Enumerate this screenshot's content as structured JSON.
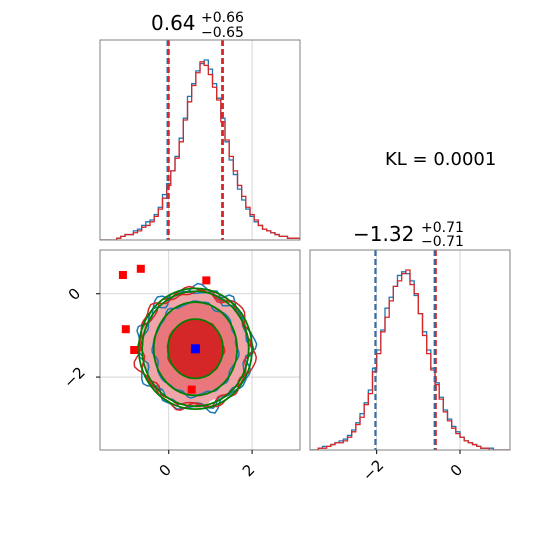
{
  "chart_data": {
    "type": "corner",
    "annotation": "KL = 0.0001",
    "colors": {
      "blue": "#1f77b4",
      "red": "#d62728",
      "green": "#008000",
      "marker_blue": "#0000ff",
      "marker_red": "#ff0000",
      "grid": "#cccccc"
    },
    "panels": [
      {
        "id": "p1",
        "title_main": "0.64",
        "title_sup": "+0.66",
        "title_sub": "−0.65",
        "xlim": [
          -1.65,
          3.15
        ],
        "ylim": [
          0,
          1.1
        ],
        "xgrid": [
          0,
          2
        ],
        "vlines": [
          {
            "x": -0.03,
            "color": "blue"
          },
          {
            "x": 0.0,
            "color": "red"
          },
          {
            "x": 1.28,
            "color": "blue"
          },
          {
            "x": 1.3,
            "color": "red"
          }
        ],
        "bin_start": -1.65,
        "bin_width": 0.1,
        "series": [
          {
            "name": "",
            "color": "blue",
            "values": [
              0,
              0,
              0,
              0,
              0.01,
              0.02,
              0.03,
              0.03,
              0.05,
              0.06,
              0.08,
              0.1,
              0.11,
              0.14,
              0.18,
              0.25,
              0.31,
              0.38,
              0.46,
              0.56,
              0.67,
              0.79,
              0.86,
              0.93,
              0.97,
              0.99,
              0.94,
              0.86,
              0.78,
              0.67,
              0.54,
              0.44,
              0.36,
              0.28,
              0.22,
              0.17,
              0.13,
              0.1,
              0.08,
              0.06,
              0.05,
              0.04,
              0.03,
              0.02,
              0.02,
              0.01,
              0.01,
              0.01
            ]
          },
          {
            "name": "",
            "color": "red",
            "values": [
              0,
              0,
              0,
              0,
              0.01,
              0.02,
              0.03,
              0.03,
              0.04,
              0.05,
              0.07,
              0.08,
              0.1,
              0.13,
              0.17,
              0.23,
              0.3,
              0.38,
              0.45,
              0.54,
              0.66,
              0.76,
              0.85,
              0.92,
              0.98,
              0.96,
              0.91,
              0.84,
              0.77,
              0.65,
              0.55,
              0.46,
              0.38,
              0.3,
              0.24,
              0.18,
              0.14,
              0.11,
              0.08,
              0.06,
              0.05,
              0.04,
              0.03,
              0.02,
              0.02,
              0.01,
              0.01,
              0.01
            ]
          }
        ]
      },
      {
        "id": "p2",
        "xlim": [
          -1.65,
          3.15
        ],
        "ylim": [
          -3.75,
          1.05
        ],
        "xgrid": [
          0,
          2
        ],
        "ygrid": [
          0,
          -2
        ],
        "xticks": [
          "0",
          "2"
        ],
        "yticks": [
          "0",
          "−2"
        ],
        "center": [
          0.64,
          -1.32
        ],
        "gaussian_levels": [
          {
            "rx": 0.66,
            "ry": 0.71
          },
          {
            "rx": 1.0,
            "ry": 1.12
          },
          {
            "rx": 1.28,
            "ry": 1.38
          },
          {
            "rx": 1.36,
            "ry": 1.45
          }
        ],
        "blue_marker": [
          0.64,
          -1.32
        ],
        "red_markers": [
          [
            -1.1,
            0.45
          ],
          [
            -0.67,
            0.6
          ],
          [
            -1.03,
            -0.85
          ],
          [
            -0.83,
            -1.35
          ],
          [
            0.55,
            -2.3
          ],
          [
            0.9,
            0.32
          ]
        ]
      },
      {
        "id": "p3",
        "title_main": "−1.32",
        "title_sup": "+0.71",
        "title_sub": "−0.71",
        "xlim": [
          -3.6,
          1.2
        ],
        "ylim": [
          0,
          1.1
        ],
        "xgrid": [
          -2,
          0
        ],
        "xticks": [
          "−2",
          "0"
        ],
        "vlines": [
          {
            "x": -2.03,
            "color": "red"
          },
          {
            "x": -2.03,
            "color": "blue"
          },
          {
            "x": -0.61,
            "color": "blue"
          },
          {
            "x": -0.58,
            "color": "red"
          }
        ],
        "bin_start": -3.6,
        "bin_width": 0.1,
        "series": [
          {
            "name": "",
            "color": "blue",
            "values": [
              0,
              0,
              0.01,
              0.02,
              0.02,
              0.03,
              0.04,
              0.05,
              0.06,
              0.08,
              0.11,
              0.15,
              0.2,
              0.26,
              0.33,
              0.45,
              0.55,
              0.66,
              0.78,
              0.84,
              0.9,
              0.96,
              0.98,
              0.97,
              0.93,
              0.85,
              0.75,
              0.65,
              0.55,
              0.45,
              0.37,
              0.29,
              0.22,
              0.17,
              0.13,
              0.1,
              0.07,
              0.05,
              0.04,
              0.03,
              0.02,
              0.01,
              0.01,
              0.01,
              0,
              0,
              0,
              0
            ]
          },
          {
            "name": "",
            "color": "red",
            "values": [
              0,
              0,
              0.01,
              0.01,
              0.02,
              0.03,
              0.04,
              0.04,
              0.05,
              0.07,
              0.1,
              0.14,
              0.18,
              0.25,
              0.31,
              0.43,
              0.53,
              0.65,
              0.73,
              0.82,
              0.9,
              0.93,
              0.97,
              0.99,
              0.91,
              0.86,
              0.75,
              0.63,
              0.53,
              0.44,
              0.36,
              0.28,
              0.21,
              0.16,
              0.12,
              0.09,
              0.07,
              0.05,
              0.04,
              0.03,
              0.02,
              0.01,
              0.01,
              0,
              0,
              0,
              0,
              0
            ]
          }
        ]
      }
    ]
  }
}
